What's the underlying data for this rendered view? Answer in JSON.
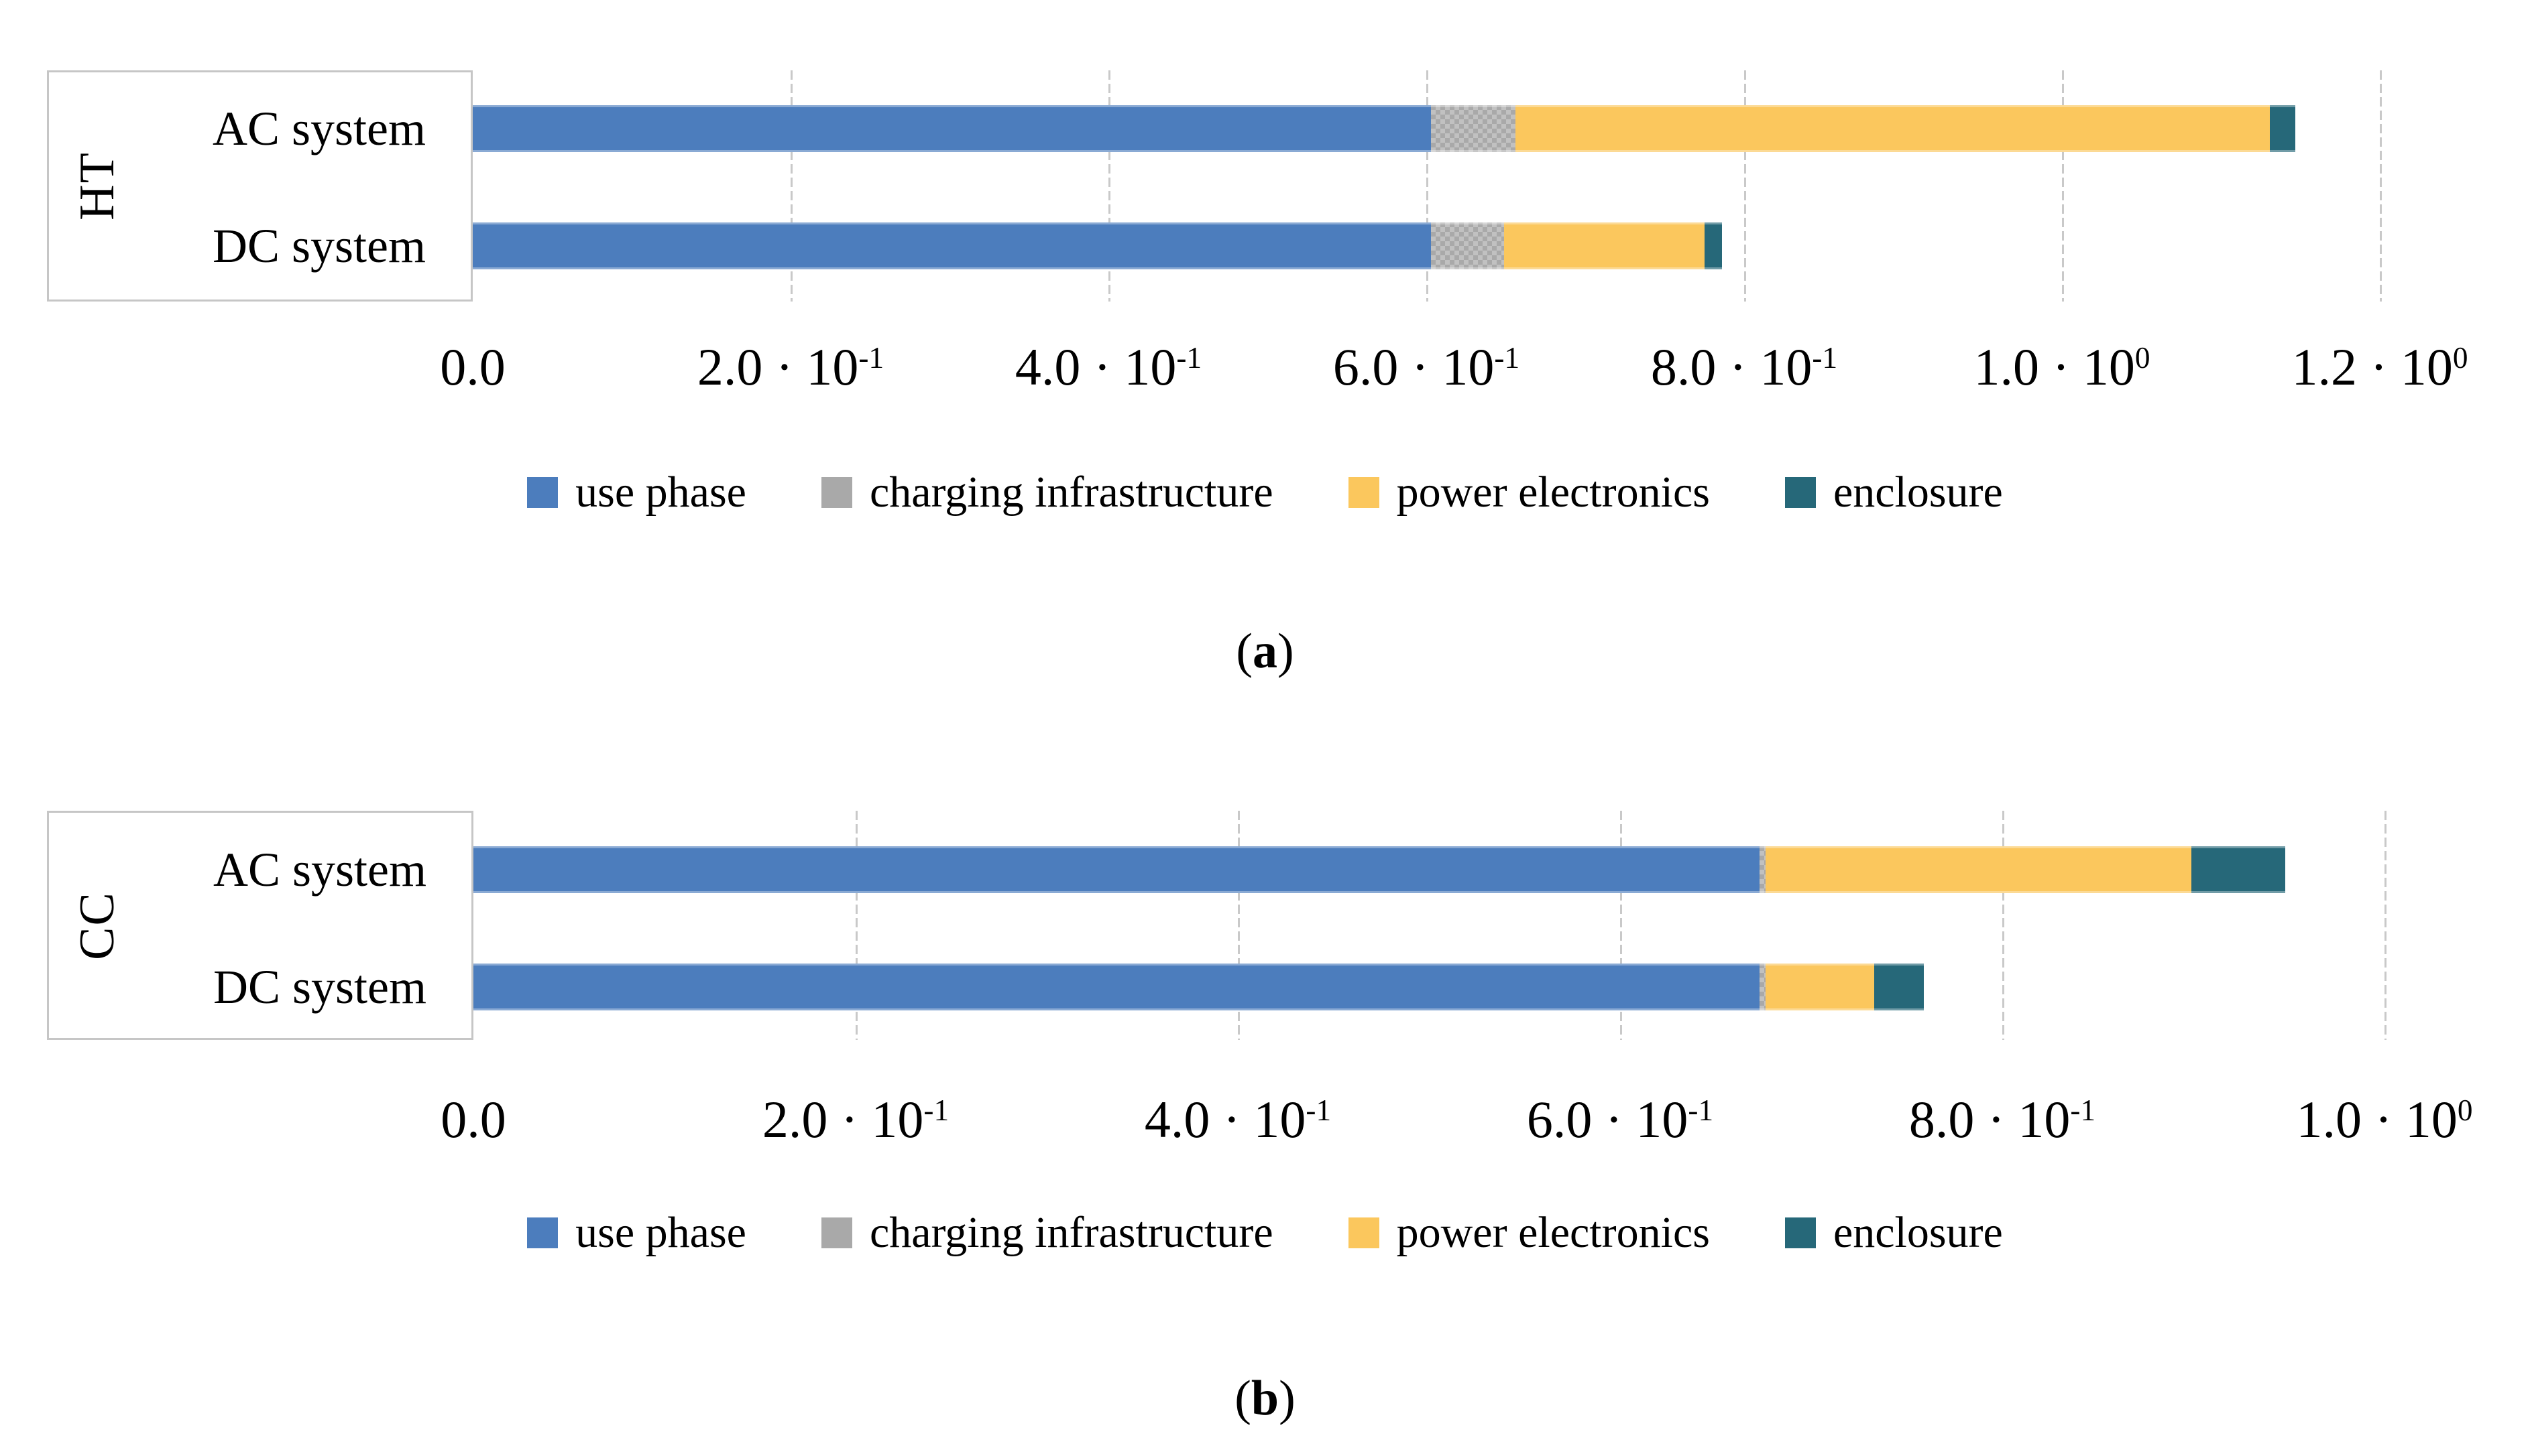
{
  "page": {
    "background": "#ffffff",
    "caption_a_pre": "(",
    "caption_a_letter": "a",
    "caption_a_post": ")",
    "caption_b_pre": "(",
    "caption_b_letter": "b",
    "caption_b_post": ")"
  },
  "colors": {
    "use_phase": "#4C7DBD",
    "charging_infrastructure": "#A9A9A9",
    "power_electronics": "#FBC75D",
    "enclosure": "#266879",
    "gridline": "#C9C9C9",
    "panel_border": "#C6C6C6",
    "text": "#000000"
  },
  "chart_data": [
    {
      "type": "bar",
      "orientation": "horizontal",
      "stacked": true,
      "group_label": "HT",
      "caption_letter": "a",
      "categories": [
        "AC system",
        "DC system"
      ],
      "series": [
        {
          "name": "use phase",
          "color": "#4C7DBD",
          "pattern": false,
          "values": [
            0.603,
            0.603
          ]
        },
        {
          "name": "charging infrastructure",
          "color": "#A9A9A9",
          "pattern": true,
          "values": [
            0.053,
            0.046
          ]
        },
        {
          "name": "power electronics",
          "color": "#FBC75D",
          "pattern": false,
          "values": [
            0.475,
            0.126
          ]
        },
        {
          "name": "enclosure",
          "color": "#266879",
          "pattern": false,
          "values": [
            0.016,
            0.011
          ]
        }
      ],
      "totals": [
        1.147,
        0.786
      ],
      "xlim": [
        0,
        1.2
      ],
      "grid": true,
      "legend_position": "bottom",
      "ticks": [
        {
          "value": 0.0,
          "base": "0.0",
          "exp": null
        },
        {
          "value": 0.2,
          "base": "2.0 · 10",
          "exp": "-1"
        },
        {
          "value": 0.4,
          "base": "4.0 · 10",
          "exp": "-1"
        },
        {
          "value": 0.6,
          "base": "6.0 · 10",
          "exp": "-1"
        },
        {
          "value": 0.8,
          "base": "8.0 · 10",
          "exp": "-1"
        },
        {
          "value": 1.0,
          "base": "1.0 · 10",
          "exp": "0"
        },
        {
          "value": 1.2,
          "base": "1.2 · 10",
          "exp": "0"
        }
      ]
    },
    {
      "type": "bar",
      "orientation": "horizontal",
      "stacked": true,
      "group_label": "CC",
      "caption_letter": "b",
      "categories": [
        "AC system",
        "DC system"
      ],
      "series": [
        {
          "name": "use phase",
          "color": "#4C7DBD",
          "pattern": false,
          "values": [
            0.673,
            0.673
          ]
        },
        {
          "name": "charging infrastructure",
          "color": "#A9A9A9",
          "pattern": true,
          "values": [
            0.003,
            0.003
          ]
        },
        {
          "name": "power electronics",
          "color": "#FBC75D",
          "pattern": false,
          "values": [
            0.223,
            0.057
          ]
        },
        {
          "name": "enclosure",
          "color": "#266879",
          "pattern": false,
          "values": [
            0.049,
            0.026
          ]
        }
      ],
      "totals": [
        0.948,
        0.759
      ],
      "xlim": [
        0,
        1.0
      ],
      "grid": true,
      "legend_position": "bottom",
      "ticks": [
        {
          "value": 0.0,
          "base": "0.0",
          "exp": null
        },
        {
          "value": 0.2,
          "base": "2.0 · 10",
          "exp": "-1"
        },
        {
          "value": 0.4,
          "base": "4.0 · 10",
          "exp": "-1"
        },
        {
          "value": 0.6,
          "base": "6.0 · 10",
          "exp": "-1"
        },
        {
          "value": 0.8,
          "base": "8.0 · 10",
          "exp": "-1"
        },
        {
          "value": 1.0,
          "base": "1.0 · 10",
          "exp": "0"
        }
      ]
    }
  ]
}
